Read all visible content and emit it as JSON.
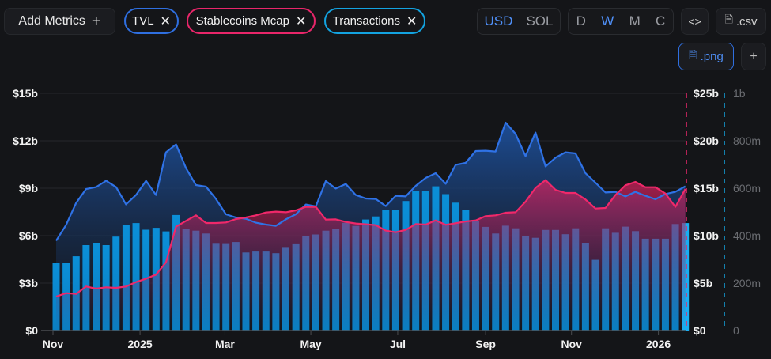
{
  "toolbar": {
    "add_metrics_label": "Add Metrics",
    "add_icon": "plus-icon",
    "metrics": [
      {
        "label": "TVL",
        "color": "#2f6fe0"
      },
      {
        "label": "Stablecoins Mcap",
        "color": "#e9266a"
      },
      {
        "label": "Transactions",
        "color": "#13a3e0"
      }
    ],
    "currency": {
      "options": [
        "USD",
        "SOL"
      ],
      "selected": "USD"
    },
    "interval": {
      "options": [
        "D",
        "W",
        "M",
        "C"
      ],
      "selected": "W"
    },
    "embed_icon": "code-icon",
    "csv_label": ".csv",
    "png_label": ".png",
    "more_label": "+"
  },
  "chart_data": {
    "type": "bar+area",
    "x_tick_labels": [
      {
        "label": "Nov",
        "index": 0,
        "bold": false
      },
      {
        "label": "2025",
        "index": 8.4,
        "bold": true
      },
      {
        "label": "Mar",
        "index": 16.9,
        "bold": false
      },
      {
        "label": "May",
        "index": 25.5,
        "bold": false
      },
      {
        "label": "Jul",
        "index": 34.2,
        "bold": false
      },
      {
        "label": "Sep",
        "index": 43.0,
        "bold": false
      },
      {
        "label": "Nov",
        "index": 51.6,
        "bold": false
      },
      {
        "label": "2026",
        "index": 60.3,
        "bold": true
      }
    ],
    "axes": {
      "tvl": {
        "labels": [
          "$0",
          "$3b",
          "$6b",
          "$9b",
          "$12b",
          "$15b"
        ],
        "range": [
          0,
          15
        ]
      },
      "stablecoins": {
        "labels": [
          "$0",
          "$5b",
          "$10b",
          "$15b",
          "$20b",
          "$25b"
        ],
        "range": [
          0,
          25
        ]
      },
      "transactions": {
        "labels": [
          "0",
          "200m",
          "400m",
          "600m",
          "800m",
          "1b"
        ],
        "range": [
          0,
          1000
        ]
      }
    },
    "series": [
      {
        "name": "TVL",
        "unit": "$b",
        "axis": "tvl",
        "kind": "area",
        "values": [
          5.68,
          6.68,
          8.07,
          8.95,
          9.07,
          9.47,
          9.07,
          7.98,
          8.57,
          9.47,
          8.57,
          11.27,
          11.77,
          10.27,
          9.2,
          9.1,
          8.32,
          7.35,
          7.15,
          7.07,
          6.82,
          6.7,
          6.62,
          7.03,
          7.35,
          7.97,
          7.85,
          9.45,
          8.98,
          9.27,
          8.57,
          8.35,
          8.32,
          7.87,
          8.52,
          8.48,
          9.15,
          9.65,
          9.95,
          9.28,
          10.48,
          10.6,
          11.35,
          11.37,
          11.32,
          13.15,
          12.43,
          11.03,
          12.52,
          10.38,
          10.93,
          11.27,
          11.2,
          9.95,
          9.35,
          8.73,
          8.77,
          8.48,
          8.77,
          8.52,
          8.3,
          8.63,
          8.77,
          9.12
        ]
      },
      {
        "name": "Stablecoins Mcap",
        "unit": "$b",
        "axis": "stablecoins",
        "kind": "area",
        "values": [
          3.58,
          3.94,
          3.86,
          4.64,
          4.42,
          4.56,
          4.5,
          4.64,
          5.11,
          5.47,
          5.89,
          7.19,
          10.94,
          11.56,
          12.14,
          11.33,
          11.33,
          11.39,
          11.75,
          11.92,
          12.14,
          12.44,
          12.53,
          12.47,
          12.67,
          13.03,
          13.03,
          11.69,
          11.72,
          11.44,
          11.28,
          11.2,
          11.11,
          10.53,
          10.36,
          10.61,
          11.22,
          11.17,
          11.61,
          11.14,
          11.31,
          11.5,
          11.61,
          12.06,
          12.14,
          12.42,
          12.47,
          13.58,
          15.03,
          15.86,
          14.83,
          14.5,
          14.5,
          13.81,
          12.86,
          12.92,
          14.28,
          15.31,
          15.67,
          15.11,
          15.11,
          14.44,
          13.03,
          14.92
        ]
      },
      {
        "name": "Transactions",
        "unit": "m",
        "axis": "transactions",
        "kind": "bar",
        "values": [
          286,
          286,
          313,
          360,
          370,
          360,
          396,
          444,
          453,
          425,
          433,
          418,
          487,
          430,
          421,
          409,
          369,
          368,
          373,
          329,
          333,
          333,
          326,
          352,
          367,
          399,
          405,
          421,
          429,
          454,
          441,
          468,
          481,
          509,
          509,
          546,
          590,
          589,
          608,
          575,
          539,
          507,
          461,
          437,
          409,
          442,
          431,
          400,
          391,
          424,
          424,
          406,
          431,
          370,
          298,
          431,
          412,
          438,
          419,
          387,
          387,
          387,
          449,
          453
        ]
      }
    ],
    "grid": true,
    "legend": "top-left (metric chips)"
  }
}
